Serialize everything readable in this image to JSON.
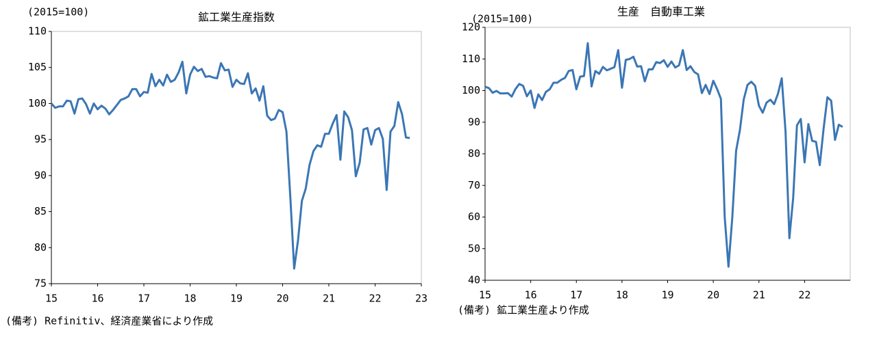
{
  "chart_data": [
    {
      "type": "line",
      "title": "鉱工業生産指数",
      "y_unit_label": "(2015=100)",
      "note": "(備考) Refinitiv、経済産業省により作成",
      "xlim": [
        15,
        23
      ],
      "xticks": [
        15,
        16,
        17,
        18,
        19,
        20,
        21,
        22,
        23
      ],
      "ylim": [
        75,
        110
      ],
      "yticks": [
        75,
        80,
        85,
        90,
        95,
        100,
        105,
        110
      ],
      "x": [
        15,
        15.083,
        15.167,
        15.25,
        15.333,
        15.417,
        15.5,
        15.583,
        15.667,
        15.75,
        15.833,
        15.917,
        16,
        16.083,
        16.167,
        16.25,
        16.333,
        16.417,
        16.5,
        16.583,
        16.667,
        16.75,
        16.833,
        16.917,
        17,
        17.083,
        17.167,
        17.25,
        17.333,
        17.417,
        17.5,
        17.583,
        17.667,
        17.75,
        17.833,
        17.917,
        18,
        18.083,
        18.167,
        18.25,
        18.333,
        18.417,
        18.5,
        18.583,
        18.667,
        18.75,
        18.833,
        18.917,
        19,
        19.083,
        19.167,
        19.25,
        19.333,
        19.417,
        19.5,
        19.583,
        19.667,
        19.75,
        19.833,
        19.917,
        20,
        20.083,
        20.167,
        20.25,
        20.333,
        20.417,
        20.5,
        20.583,
        20.667,
        20.75,
        20.833,
        20.917,
        21,
        21.083,
        21.167,
        21.25,
        21.333,
        21.417,
        21.5,
        21.583,
        21.667,
        21.75,
        21.833,
        21.917,
        22,
        22.083,
        22.167,
        22.25,
        22.333,
        22.417,
        22.5,
        22.583,
        22.667,
        22.75
      ],
      "series": [
        {
          "color": "#3b76b4",
          "values": [
            100.0,
            99.4,
            99.6,
            99.6,
            100.4,
            100.3,
            98.6,
            100.6,
            100.7,
            99.9,
            98.6,
            100.0,
            99.2,
            99.7,
            99.3,
            98.5,
            99.1,
            99.8,
            100.5,
            100.7,
            101.0,
            102.0,
            102.0,
            101.0,
            101.6,
            101.5,
            104.1,
            102.4,
            103.3,
            102.5,
            104.0,
            103.0,
            103.3,
            104.3,
            105.8,
            101.4,
            104.0,
            105.1,
            104.5,
            104.8,
            103.7,
            103.8,
            103.6,
            103.5,
            105.6,
            104.6,
            104.7,
            102.3,
            103.3,
            102.8,
            102.7,
            104.2,
            101.4,
            102.1,
            100.4,
            102.4,
            98.3,
            97.7,
            97.9,
            99.1,
            98.8,
            96.1,
            87.0,
            77.1,
            81.0,
            86.5,
            88.2,
            91.5,
            93.4,
            94.2,
            94.0,
            95.8,
            95.8,
            97.2,
            98.4,
            92.2,
            98.9,
            98.1,
            96.3,
            89.9,
            91.8,
            96.4,
            96.6,
            94.3,
            96.3,
            96.6,
            95.1,
            88.0,
            96.1,
            96.9,
            100.2,
            98.5,
            95.3,
            95.2
          ]
        }
      ]
    },
    {
      "type": "line",
      "title": "生産　自動車工業",
      "y_unit_label": "(2015=100)",
      "note": "(備考) 鉱工業生産より作成",
      "xlim": [
        15,
        23
      ],
      "xticks": [
        15,
        16,
        17,
        18,
        19,
        20,
        21,
        22
      ],
      "ylim": [
        40,
        120
      ],
      "yticks": [
        40,
        50,
        60,
        70,
        80,
        90,
        100,
        110,
        120
      ],
      "x": [
        15,
        15.083,
        15.167,
        15.25,
        15.333,
        15.417,
        15.5,
        15.583,
        15.667,
        15.75,
        15.833,
        15.917,
        16,
        16.083,
        16.167,
        16.25,
        16.333,
        16.417,
        16.5,
        16.583,
        16.667,
        16.75,
        16.833,
        16.917,
        17,
        17.083,
        17.167,
        17.25,
        17.333,
        17.417,
        17.5,
        17.583,
        17.667,
        17.75,
        17.833,
        17.917,
        18,
        18.083,
        18.167,
        18.25,
        18.333,
        18.417,
        18.5,
        18.583,
        18.667,
        18.75,
        18.833,
        18.917,
        19,
        19.083,
        19.167,
        19.25,
        19.333,
        19.417,
        19.5,
        19.583,
        19.667,
        19.75,
        19.833,
        19.917,
        20,
        20.083,
        20.167,
        20.25,
        20.333,
        20.417,
        20.5,
        20.583,
        20.667,
        20.75,
        20.833,
        20.917,
        21,
        21.083,
        21.167,
        21.25,
        21.333,
        21.417,
        21.5,
        21.583,
        21.667,
        21.75,
        21.833,
        21.917,
        22,
        22.083,
        22.167,
        22.25,
        22.333,
        22.417,
        22.5,
        22.583,
        22.667,
        22.75,
        22.833
      ],
      "series": [
        {
          "color": "#3b76b4",
          "values": [
            101.2,
            100.8,
            99.3,
            99.9,
            99.1,
            99.1,
            99.2,
            98.1,
            100.5,
            102.1,
            101.5,
            98.2,
            100.0,
            94.5,
            98.8,
            97.0,
            99.6,
            100.4,
            102.5,
            102.5,
            103.4,
            104.0,
            106.2,
            106.5,
            100.4,
            104.4,
            104.6,
            115.0,
            101.3,
            106.2,
            105.3,
            107.5,
            106.4,
            106.9,
            107.4,
            112.8,
            100.9,
            109.7,
            110.0,
            110.7,
            107.6,
            107.7,
            102.9,
            106.7,
            106.7,
            109.0,
            108.7,
            109.6,
            107.5,
            109.2,
            107.3,
            108.0,
            112.8,
            106.5,
            107.7,
            105.9,
            105.1,
            99.2,
            101.8,
            98.9,
            103.1,
            100.5,
            97.4,
            60.0,
            44.3,
            60.0,
            81.0,
            87.5,
            97.2,
            101.8,
            102.8,
            101.5,
            95.2,
            93.0,
            96.2,
            97.1,
            95.7,
            99.0,
            103.9,
            87.0,
            53.3,
            66.0,
            89.0,
            91.0,
            77.3,
            89.4,
            84.1,
            83.8,
            76.4,
            88.0,
            97.9,
            96.8,
            84.4,
            89.2,
            88.5
          ]
        }
      ]
    }
  ]
}
